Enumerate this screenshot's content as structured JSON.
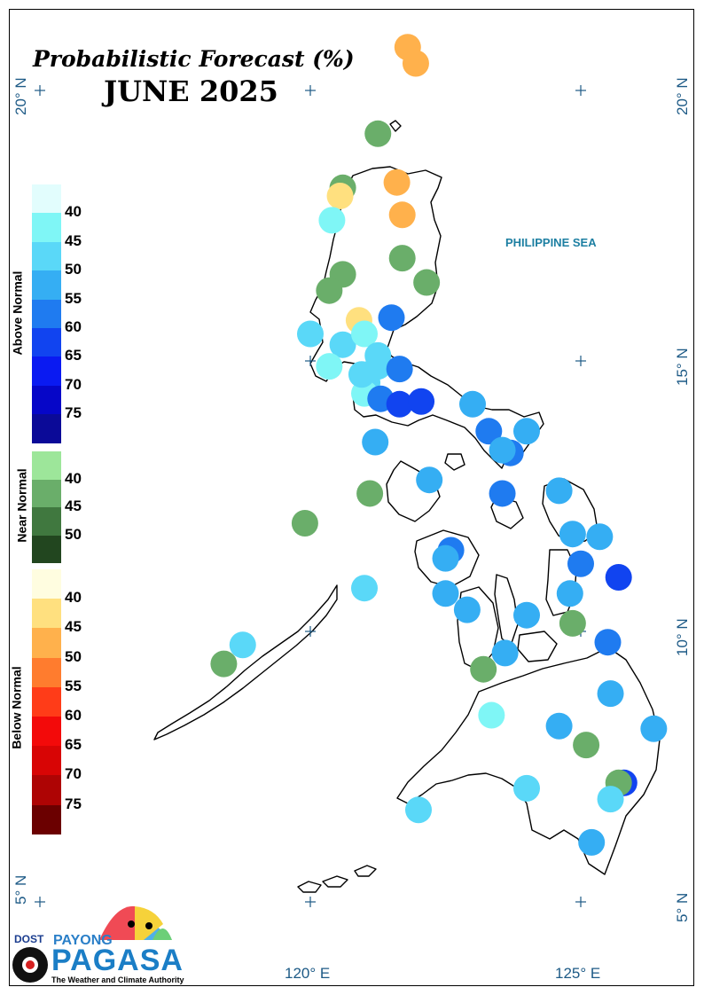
{
  "title": "Probabilistic Forecast (%)",
  "period": "JUNE 2025",
  "sea_label": "PHILIPPINE SEA",
  "lat_labels": [
    "20° N",
    "15° N",
    "10° N",
    "5° N"
  ],
  "lon_labels": [
    "120° E",
    "125° E"
  ],
  "legend": {
    "above": {
      "title": "Above Normal",
      "ticks": [
        "40",
        "45",
        "50",
        "55",
        "60",
        "65",
        "70",
        "75"
      ],
      "colors": [
        "#e2fdfd",
        "#7ff6f6",
        "#5ad8f8",
        "#35aef3",
        "#1f7bf0",
        "#1144f0",
        "#0a1af2",
        "#0606c8",
        "#0b0a98"
      ]
    },
    "near": {
      "title": "Near Normal",
      "ticks": [
        "40",
        "45",
        "50"
      ],
      "colors": [
        "#9de69a",
        "#6aae6a",
        "#40783f",
        "#22461f"
      ]
    },
    "below": {
      "title": "Below Normal",
      "ticks": [
        "40",
        "45",
        "50",
        "55",
        "60",
        "65",
        "70",
        "75"
      ],
      "colors": [
        "#fffde0",
        "#ffe07f",
        "#ffb14c",
        "#ff7c2e",
        "#ff3c18",
        "#f30a0a",
        "#d80505",
        "#ae0404",
        "#6b0000"
      ]
    }
  },
  "logo": {
    "agency": "DOST",
    "brand_top": "PAYONG",
    "brand": "PAGASA",
    "tagline": "The Weather and Climate Authority"
  },
  "stations": [
    {
      "lat": 20.8,
      "lon": 121.8,
      "category": "below",
      "level": 45
    },
    {
      "lat": 20.5,
      "lon": 121.95,
      "category": "below",
      "level": 45
    },
    {
      "lat": 19.2,
      "lon": 121.25,
      "category": "near",
      "level": 40
    },
    {
      "lat": 18.3,
      "lon": 121.6,
      "category": "below",
      "level": 45
    },
    {
      "lat": 18.2,
      "lon": 120.6,
      "category": "near",
      "level": 40
    },
    {
      "lat": 18.05,
      "lon": 120.55,
      "category": "below",
      "level": 40
    },
    {
      "lat": 17.6,
      "lon": 120.4,
      "category": "above",
      "level": 40
    },
    {
      "lat": 17.7,
      "lon": 121.7,
      "category": "below",
      "level": 45
    },
    {
      "lat": 16.9,
      "lon": 121.7,
      "category": "near",
      "level": 40
    },
    {
      "lat": 16.6,
      "lon": 120.6,
      "category": "near",
      "level": 40
    },
    {
      "lat": 16.45,
      "lon": 122.15,
      "category": "near",
      "level": 40
    },
    {
      "lat": 16.3,
      "lon": 120.35,
      "category": "near",
      "level": 40
    },
    {
      "lat": 15.8,
      "lon": 121.5,
      "category": "above",
      "level": 55
    },
    {
      "lat": 15.75,
      "lon": 120.9,
      "category": "below",
      "level": 40
    },
    {
      "lat": 15.5,
      "lon": 120.0,
      "category": "above",
      "level": 45
    },
    {
      "lat": 15.3,
      "lon": 120.6,
      "category": "above",
      "level": 45
    },
    {
      "lat": 15.5,
      "lon": 121.0,
      "category": "above",
      "level": 40
    },
    {
      "lat": 15.1,
      "lon": 121.25,
      "category": "above",
      "level": 45
    },
    {
      "lat": 14.9,
      "lon": 121.25,
      "category": "above",
      "level": 45
    },
    {
      "lat": 14.85,
      "lon": 121.65,
      "category": "above",
      "level": 55
    },
    {
      "lat": 14.6,
      "lon": 121.05,
      "category": "above",
      "level": 45
    },
    {
      "lat": 14.4,
      "lon": 121.0,
      "category": "above",
      "level": 40
    },
    {
      "lat": 14.75,
      "lon": 120.95,
      "category": "above",
      "level": 45
    },
    {
      "lat": 14.9,
      "lon": 120.35,
      "category": "above",
      "level": 40
    },
    {
      "lat": 14.3,
      "lon": 121.3,
      "category": "above",
      "level": 55
    },
    {
      "lat": 14.2,
      "lon": 121.65,
      "category": "above",
      "level": 60
    },
    {
      "lat": 14.25,
      "lon": 122.05,
      "category": "above",
      "level": 60
    },
    {
      "lat": 14.2,
      "lon": 123.0,
      "category": "above",
      "level": 50
    },
    {
      "lat": 13.7,
      "lon": 123.3,
      "category": "above",
      "level": 55
    },
    {
      "lat": 13.7,
      "lon": 124.0,
      "category": "above",
      "level": 50
    },
    {
      "lat": 13.3,
      "lon": 123.7,
      "category": "above",
      "level": 55
    },
    {
      "lat": 13.35,
      "lon": 123.55,
      "category": "above",
      "level": 50
    },
    {
      "lat": 13.5,
      "lon": 121.2,
      "category": "above",
      "level": 50
    },
    {
      "lat": 12.8,
      "lon": 122.2,
      "category": "above",
      "level": 50
    },
    {
      "lat": 12.55,
      "lon": 121.1,
      "category": "near",
      "level": 40
    },
    {
      "lat": 12.6,
      "lon": 124.6,
      "category": "above",
      "level": 50
    },
    {
      "lat": 12.55,
      "lon": 123.55,
      "category": "above",
      "level": 55
    },
    {
      "lat": 12.0,
      "lon": 119.9,
      "category": "near",
      "level": 40
    },
    {
      "lat": 11.8,
      "lon": 124.85,
      "category": "above",
      "level": 50
    },
    {
      "lat": 11.75,
      "lon": 125.35,
      "category": "above",
      "level": 50
    },
    {
      "lat": 11.5,
      "lon": 122.6,
      "category": "above",
      "level": 55
    },
    {
      "lat": 11.35,
      "lon": 122.5,
      "category": "above",
      "level": 50
    },
    {
      "lat": 11.25,
      "lon": 125.0,
      "category": "above",
      "level": 55
    },
    {
      "lat": 11.0,
      "lon": 125.7,
      "category": "above",
      "level": 60
    },
    {
      "lat": 10.8,
      "lon": 121.0,
      "category": "above",
      "level": 45
    },
    {
      "lat": 10.7,
      "lon": 122.5,
      "category": "above",
      "level": 50
    },
    {
      "lat": 10.7,
      "lon": 124.8,
      "category": "above",
      "level": 50
    },
    {
      "lat": 10.4,
      "lon": 122.9,
      "category": "above",
      "level": 50
    },
    {
      "lat": 10.3,
      "lon": 124.0,
      "category": "above",
      "level": 50
    },
    {
      "lat": 10.15,
      "lon": 124.85,
      "category": "near",
      "level": 40
    },
    {
      "lat": 9.8,
      "lon": 125.5,
      "category": "above",
      "level": 55
    },
    {
      "lat": 9.75,
      "lon": 118.75,
      "category": "above",
      "level": 45
    },
    {
      "lat": 9.6,
      "lon": 123.6,
      "category": "above",
      "level": 50
    },
    {
      "lat": 9.4,
      "lon": 118.4,
      "category": "near",
      "level": 40
    },
    {
      "lat": 9.3,
      "lon": 123.2,
      "category": "near",
      "level": 40
    },
    {
      "lat": 8.85,
      "lon": 125.55,
      "category": "above",
      "level": 50
    },
    {
      "lat": 8.45,
      "lon": 123.35,
      "category": "above",
      "level": 40
    },
    {
      "lat": 8.25,
      "lon": 124.6,
      "category": "above",
      "level": 50
    },
    {
      "lat": 8.2,
      "lon": 126.35,
      "category": "above",
      "level": 50
    },
    {
      "lat": 7.9,
      "lon": 125.1,
      "category": "near",
      "level": 40
    },
    {
      "lat": 7.2,
      "lon": 125.8,
      "category": "above",
      "level": 60
    },
    {
      "lat": 7.1,
      "lon": 124.0,
      "category": "above",
      "level": 45
    },
    {
      "lat": 7.2,
      "lon": 125.7,
      "category": "near",
      "level": 40
    },
    {
      "lat": 6.9,
      "lon": 125.55,
      "category": "above",
      "level": 45
    },
    {
      "lat": 6.7,
      "lon": 122.0,
      "category": "above",
      "level": 45
    },
    {
      "lat": 6.1,
      "lon": 125.2,
      "category": "above",
      "level": 50
    }
  ]
}
